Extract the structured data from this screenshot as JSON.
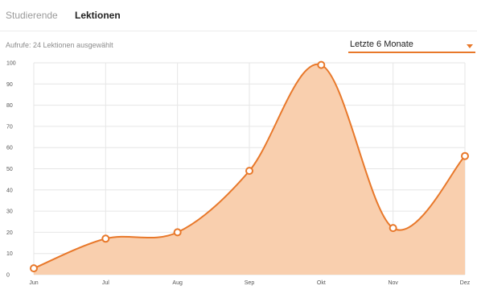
{
  "tabs": {
    "students": "Studierende",
    "lessons": "Lektionen"
  },
  "subtitle": "Aufrufe: 24 Lektionen ausgewählt",
  "range_select": {
    "value": "Letzte 6 Monate"
  },
  "colors": {
    "accent": "#e8782a",
    "area_fill": "#f9cfae",
    "grid": "#e6e6e6"
  },
  "chart_data": {
    "type": "area",
    "categories": [
      "Jun",
      "Jul",
      "Aug",
      "Sep",
      "Okt",
      "Nov",
      "Dez"
    ],
    "values": [
      3,
      17,
      20,
      49,
      99,
      22,
      56
    ],
    "yticks": [
      0,
      10,
      20,
      30,
      40,
      50,
      60,
      70,
      80,
      90,
      100
    ],
    "ylim": [
      0,
      100
    ],
    "grid": true,
    "title": "",
    "xlabel": "",
    "ylabel": ""
  }
}
